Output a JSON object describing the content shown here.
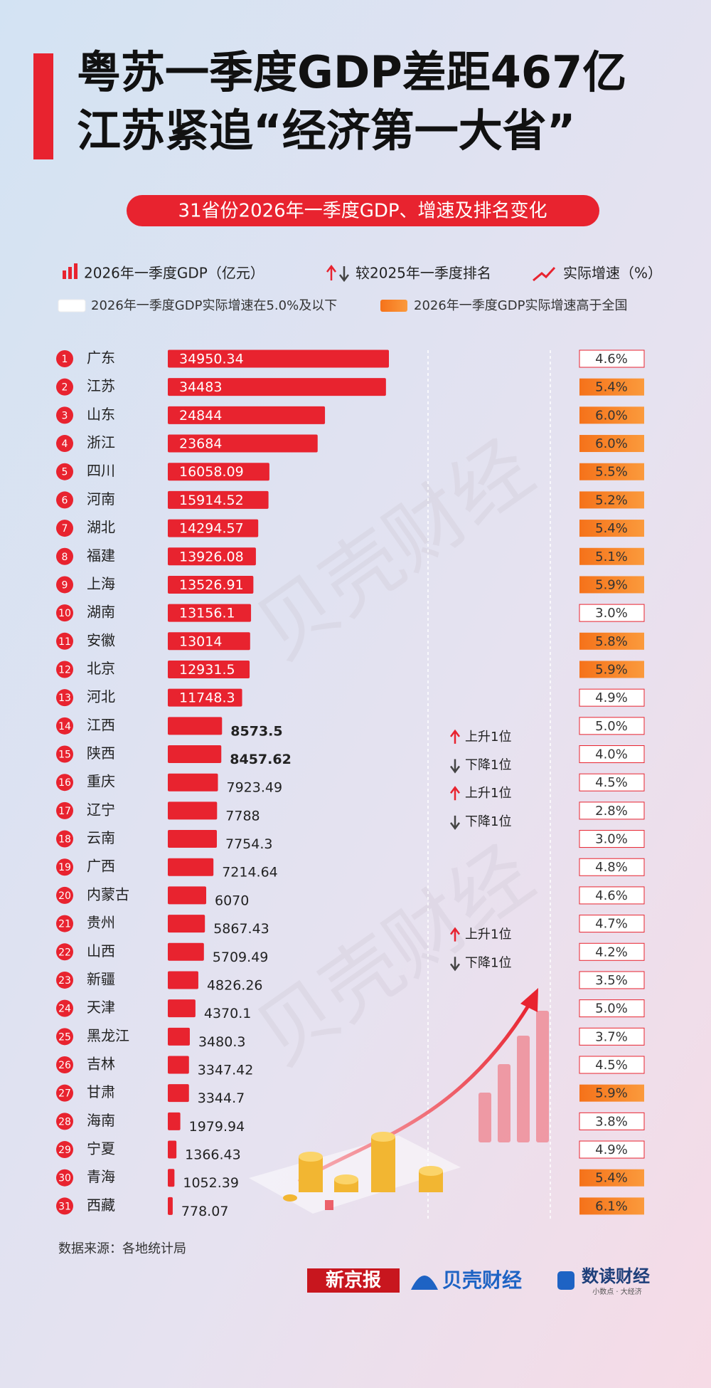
{
  "chart_data": {
    "type": "bar",
    "title": [
      "粤苏一季度GDP差距467亿",
      "江苏紧追“经济第一大省”"
    ],
    "subtitle": "31省份2026年一季度GDP、增速及排名变化",
    "legend": {
      "gdp": "2026年一季度GDP（亿元）",
      "rank": "较2025年一季度排名",
      "growth": "实际增速（%）",
      "low": "2026年一季度GDP实际增速在5.0%及以下",
      "high": "2026年一季度GDP实际增速高于全国"
    },
    "ranks": [
      1,
      2,
      3,
      4,
      5,
      6,
      7,
      8,
      9,
      10,
      11,
      12,
      13,
      14,
      15,
      16,
      17,
      18,
      19,
      20,
      21,
      22,
      23,
      24,
      25,
      26,
      27,
      28,
      29,
      30,
      31
    ],
    "categories": [
      "广东",
      "江苏",
      "山东",
      "浙江",
      "四川",
      "河南",
      "湖北",
      "福建",
      "上海",
      "湖南",
      "安徽",
      "北京",
      "河北",
      "江西",
      "陕西",
      "重庆",
      "辽宁",
      "云南",
      "广西",
      "内蒙古",
      "贵州",
      "山西",
      "新疆",
      "天津",
      "黑龙江",
      "吉林",
      "甘肃",
      "海南",
      "宁夏",
      "青海",
      "西藏"
    ],
    "values": [
      34950.34,
      34483,
      24844,
      23684,
      16058.09,
      15914.52,
      14294.57,
      13926.08,
      13526.91,
      13156.1,
      13014,
      12931.5,
      11748.3,
      8573.5,
      8457.62,
      7923.49,
      7788,
      7754.3,
      7214.64,
      6070,
      5867.43,
      5709.49,
      4826.26,
      4370.1,
      3480.3,
      3347.42,
      3344.7,
      1979.94,
      1366.43,
      1052.39,
      778.07
    ],
    "color": "#e8232f",
    "growth": [
      4.6,
      5.4,
      6.0,
      6.0,
      5.5,
      5.2,
      5.4,
      5.1,
      5.9,
      3.0,
      5.8,
      5.9,
      4.9,
      5.0,
      4.0,
      4.5,
      2.8,
      3.0,
      4.8,
      4.6,
      4.7,
      4.2,
      3.5,
      5.0,
      3.7,
      4.5,
      5.9,
      3.8,
      4.9,
      5.4,
      6.1
    ],
    "growth_labels": [
      "4.6%",
      "5.4%",
      "6.0%",
      "6.0%",
      "5.5%",
      "5.2%",
      "5.4%",
      "5.1%",
      "5.9%",
      "3.0%",
      "5.8%",
      "5.9%",
      "4.9%",
      "5.0%",
      "4.0%",
      "4.5%",
      "2.8%",
      "3.0%",
      "4.8%",
      "4.6%",
      "4.7%",
      "4.2%",
      "3.5%",
      "5.0%",
      "3.7%",
      "4.5%",
      "5.9%",
      "3.8%",
      "4.9%",
      "5.4%",
      "6.1%"
    ],
    "growth_above_national": [
      false,
      true,
      true,
      true,
      true,
      true,
      true,
      true,
      true,
      false,
      true,
      true,
      false,
      false,
      false,
      false,
      false,
      false,
      false,
      false,
      false,
      false,
      false,
      false,
      false,
      false,
      true,
      false,
      false,
      true,
      true
    ],
    "rank_change": [
      null,
      null,
      null,
      null,
      null,
      null,
      null,
      null,
      null,
      null,
      null,
      null,
      null,
      {
        "label": "上升1位",
        "direction": "up"
      },
      {
        "label": "下降1位",
        "direction": "down"
      },
      {
        "label": "上升1位",
        "direction": "up"
      },
      {
        "label": "下降1位",
        "direction": "down"
      },
      null,
      null,
      null,
      {
        "label": "上升1位",
        "direction": "up"
      },
      {
        "label": "下降1位",
        "direction": "down"
      },
      null,
      null,
      null,
      null,
      null,
      null,
      null,
      null,
      null
    ],
    "source": "数据来源：各地统计局",
    "watermark": "贝壳财经",
    "logos": [
      "新京报",
      "贝壳财经",
      "数读财经",
      "小数点 · 大经济"
    ]
  }
}
